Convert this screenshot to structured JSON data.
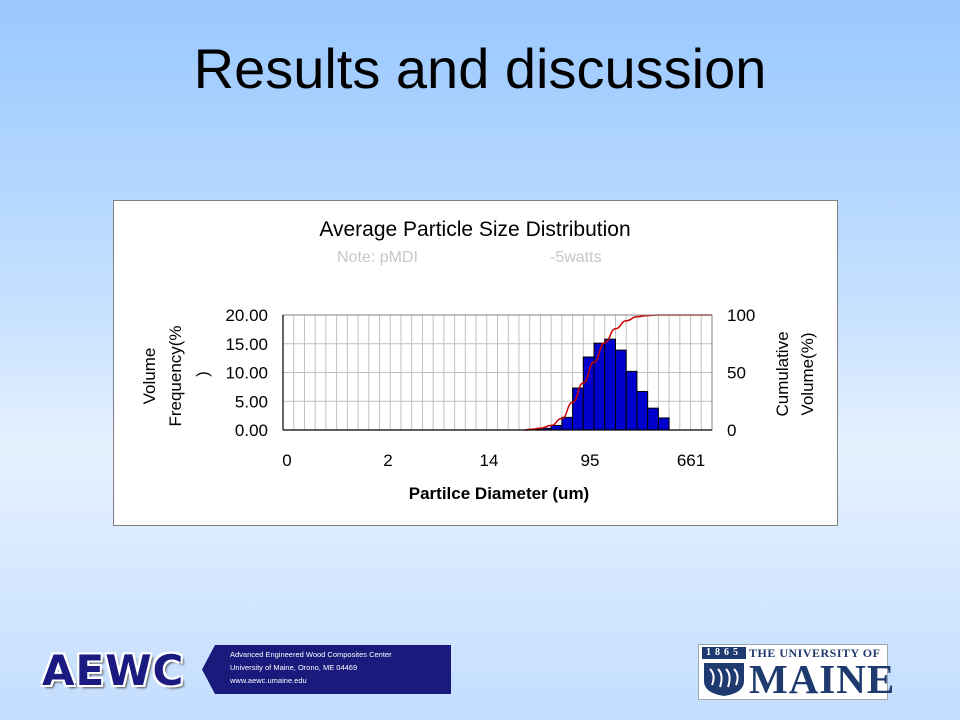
{
  "slide": {
    "title": "Results and discussion"
  },
  "chart_data": {
    "type": "bar",
    "title": "Average Particle Size Distribution",
    "subtitle_left": "Note: pMDI",
    "subtitle_right": "-5watts",
    "xlabel": "Partilce Diameter (um)",
    "ylabel_line1": "Volume",
    "ylabel_line2": "Frequency(%",
    "ylabel_line3": ")",
    "y2label_line1": "Cumulative",
    "y2label_line2": "Volume(%)",
    "ylim": [
      0,
      20
    ],
    "y2lim": [
      0,
      100
    ],
    "y_ticks": [
      "20.00",
      "15.00",
      "10.00",
      "5.00",
      "0.00"
    ],
    "y2_ticks": [
      "100",
      "50",
      "0"
    ],
    "x_tick_labels": [
      "0",
      "2",
      "14",
      "95",
      "661"
    ],
    "bin_count": 40,
    "series": [
      {
        "name": "Volume Frequency (%)",
        "type": "bar",
        "bins": [
          23,
          24,
          25,
          26,
          27,
          28,
          29,
          30,
          31,
          32,
          33,
          34,
          35
        ],
        "values": [
          0.1,
          0.3,
          0.8,
          2.2,
          7.3,
          12.7,
          15.1,
          15.8,
          13.9,
          10.2,
          6.7,
          3.8,
          2.1
        ]
      },
      {
        "name": "Cumulative Volume (%)",
        "type": "line",
        "x_bins": [
          22.5,
          23,
          24,
          25,
          26,
          27,
          28,
          29,
          30,
          31,
          32,
          33,
          34,
          35,
          36,
          37,
          38,
          40
        ],
        "values": [
          0,
          0.5,
          1.5,
          4,
          10,
          24,
          41,
          59,
          76,
          88,
          95,
          98.5,
          99.5,
          100,
          100,
          100,
          100,
          100
        ]
      }
    ],
    "colors": {
      "bar_fill": "#0000cc",
      "bar_stroke": "#000000",
      "line": "#cc0000",
      "grid": "#bfbfbf"
    }
  },
  "footer": {
    "aewc_logo": "AEWC",
    "aewc_line1": "Advanced Engineered Wood Composites Center",
    "aewc_line2": "University of Maine, Orono, ME 04469",
    "aewc_line3": "www.aewc.umaine.edu",
    "umaine_year": "1865",
    "umaine_top": "THE UNIVERSITY OF",
    "umaine_name": "MAINE"
  }
}
